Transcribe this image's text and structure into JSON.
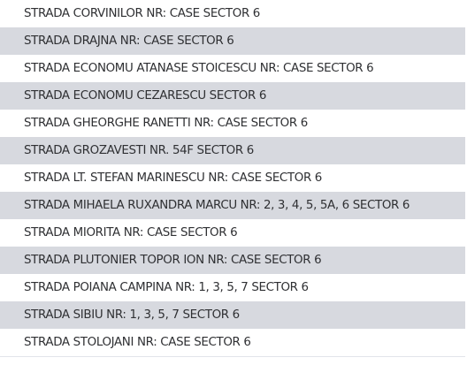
{
  "street_list": {
    "items": [
      {
        "label": "STRADA CORVINILOR NR: CASE SECTOR 6"
      },
      {
        "label": "STRADA DRAJNA NR: CASE SECTOR 6"
      },
      {
        "label": "STRADA ECONOMU ATANASE STOICESCU NR: CASE SECTOR 6"
      },
      {
        "label": "STRADA ECONOMU CEZARESCU SECTOR 6"
      },
      {
        "label": "STRADA GHEORGHE RANETTI NR: CASE SECTOR 6"
      },
      {
        "label": "STRADA GROZAVESTI NR. 54F SECTOR 6"
      },
      {
        "label": "STRADA LT. STEFAN MARINESCU NR: CASE SECTOR 6"
      },
      {
        "label": "STRADA MIHAELA RUXANDRA MARCU NR: 2, 3, 4, 5, 5A, 6 SECTOR 6"
      },
      {
        "label": "STRADA MIORITA NR: CASE SECTOR 6"
      },
      {
        "label": "STRADA PLUTONIER TOPOR ION NR: CASE SECTOR 6"
      },
      {
        "label": "STRADA POIANA CAMPINA NR: 1, 3, 5, 7 SECTOR 6"
      },
      {
        "label": "STRADA SIBIU NR: 1, 3, 5, 7 SECTOR 6"
      },
      {
        "label": "STRADA STOLOJANI NR: CASE SECTOR 6"
      }
    ]
  },
  "colors": {
    "text": "#2f3033",
    "row_shaded": "#d7d9df",
    "row_plain": "#ffffff"
  }
}
